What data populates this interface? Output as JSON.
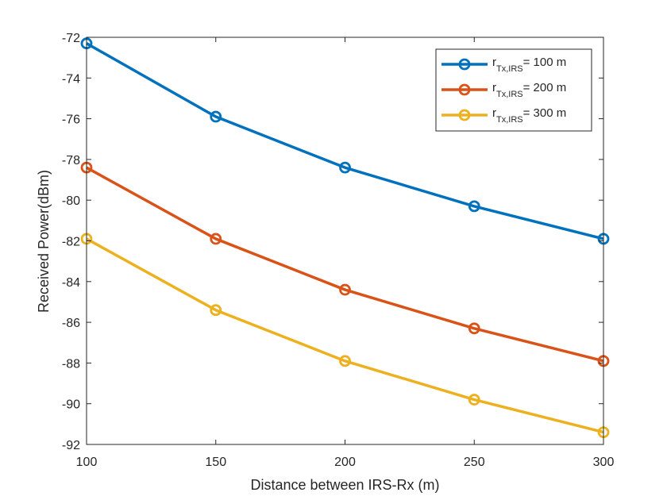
{
  "chart_data": {
    "type": "line",
    "title": "",
    "xlabel": "Distance between IRS-Rx (m)",
    "ylabel": "Received Power(dBm)",
    "xlim": [
      100,
      300
    ],
    "ylim": [
      -92,
      -72
    ],
    "xticks": [
      100,
      150,
      200,
      250,
      300
    ],
    "yticks": [
      -72,
      -74,
      -76,
      -78,
      -80,
      -82,
      -84,
      -86,
      -88,
      -90,
      -92
    ],
    "grid": false,
    "legend_position": "top-right",
    "x": [
      100,
      150,
      200,
      250,
      300
    ],
    "series": [
      {
        "name": "r_Tx,IRS= 100 m",
        "name_base": "r",
        "name_sub": "Tx,IRS",
        "name_tail": "= 100 m",
        "color": "#0072BD",
        "marker": "circle",
        "values": [
          -72.3,
          -75.9,
          -78.4,
          -80.3,
          -81.9
        ]
      },
      {
        "name": "r_Tx,IRS= 200 m",
        "name_base": "r",
        "name_sub": "Tx,IRS",
        "name_tail": "= 200 m",
        "color": "#D95319",
        "marker": "circle",
        "values": [
          -78.4,
          -81.9,
          -84.4,
          -86.3,
          -87.9
        ]
      },
      {
        "name": "r_Tx,IRS= 300 m",
        "name_base": "r",
        "name_sub": "Tx,IRS",
        "name_tail": "= 300 m",
        "color": "#EDB120",
        "marker": "circle",
        "values": [
          -81.9,
          -85.4,
          -87.9,
          -89.8,
          -91.4
        ]
      }
    ]
  }
}
